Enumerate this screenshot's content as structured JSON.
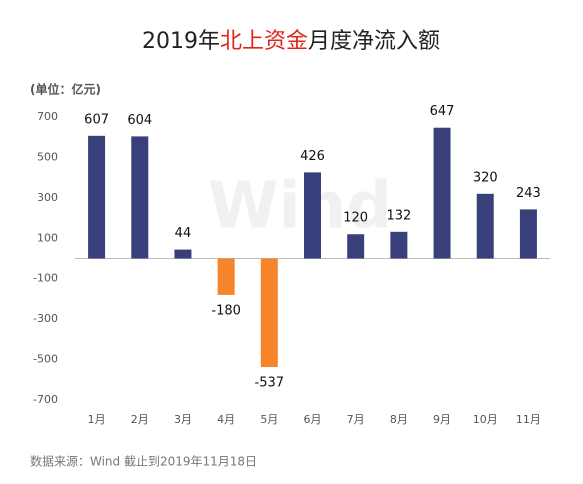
{
  "chart_data": {
    "type": "bar",
    "title": [
      {
        "text": "2019年",
        "color": "#222222"
      },
      {
        "text": "北上资金",
        "color": "#e0261c"
      },
      {
        "text": "月度净流入额",
        "color": "#222222"
      }
    ],
    "unit_label": "(单位：亿元)",
    "watermark": "Wind",
    "source": "数据来源：Wind  截止到2019年11月18日",
    "categories": [
      "1月",
      "2月",
      "3月",
      "4月",
      "5月",
      "6月",
      "7月",
      "8月",
      "9月",
      "10月",
      "11月"
    ],
    "values": [
      607,
      604,
      44,
      -180,
      -537,
      426,
      120,
      132,
      647,
      320,
      243
    ],
    "positive_color": "#383f7a",
    "negative_color": "#f5842a",
    "ylim": [
      -700,
      700
    ],
    "yticks": [
      700,
      500,
      300,
      100,
      -100,
      -300,
      -500,
      -700
    ],
    "grid": false
  }
}
